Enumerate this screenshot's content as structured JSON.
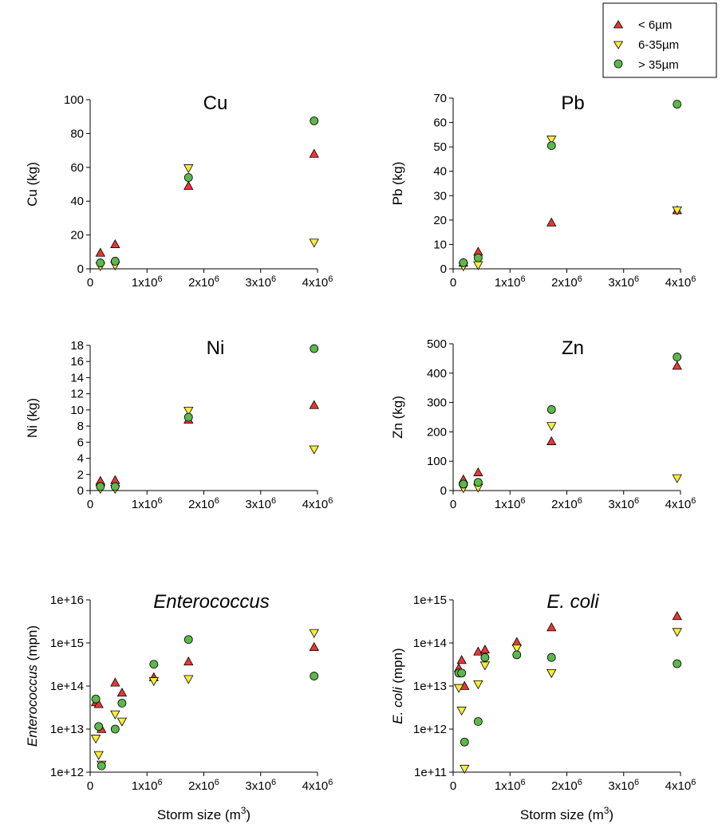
{
  "legend": {
    "entries": [
      {
        "key": "fine",
        "label": "< 6µm",
        "marker": "triangle-up",
        "color": "#e53935"
      },
      {
        "key": "mid",
        "label": "6-35µm",
        "marker": "triangle-down",
        "color": "#f5ee3a"
      },
      {
        "key": "coarse",
        "label": "> 35µm",
        "marker": "circle",
        "color": "#5cb84a"
      }
    ]
  },
  "chart_data": [
    {
      "id": "cu",
      "type": "scatter",
      "title": "Cu",
      "title_italic": false,
      "xlabel": "",
      "ylabel": "Cu (kg)",
      "ylabel_italic_prefix": "",
      "xlim": [
        0,
        4000000
      ],
      "ylim": [
        0,
        100
      ],
      "ylog": false,
      "xticks": [
        0,
        1000000,
        2000000,
        3000000,
        4000000
      ],
      "xtick_labels": [
        [
          "0",
          ""
        ],
        [
          "1x10",
          "6"
        ],
        [
          "2x10",
          "6"
        ],
        [
          "3x10",
          "6"
        ],
        [
          "4x10",
          "6"
        ]
      ],
      "yticks": [
        0,
        20,
        40,
        60,
        80,
        100
      ],
      "ytick_labels": [
        "0",
        "20",
        "40",
        "60",
        "80",
        "100"
      ],
      "series": [
        {
          "name": "< 6µm",
          "x": [
            180000,
            440000,
            1730000,
            3940000
          ],
          "y": [
            9.5,
            14.5,
            49,
            68
          ]
        },
        {
          "name": "6-35µm",
          "x": [
            180000,
            440000,
            1730000,
            3940000
          ],
          "y": [
            1.5,
            2,
            59.5,
            15.5
          ]
        },
        {
          "name": "> 35µm",
          "x": [
            180000,
            440000,
            1730000,
            3940000
          ],
          "y": [
            3.5,
            4.5,
            54,
            87.5
          ]
        }
      ]
    },
    {
      "id": "pb",
      "type": "scatter",
      "title": "Pb",
      "title_italic": false,
      "xlabel": "",
      "ylabel": "Pb (kg)",
      "ylabel_italic_prefix": "",
      "xlim": [
        0,
        4000000
      ],
      "ylim": [
        0,
        70
      ],
      "ylog": false,
      "xticks": [
        0,
        1000000,
        2000000,
        3000000,
        4000000
      ],
      "xtick_labels": [
        [
          "0",
          ""
        ],
        [
          "1x10",
          "6"
        ],
        [
          "2x10",
          "6"
        ],
        [
          "3x10",
          "6"
        ],
        [
          "4x10",
          "6"
        ]
      ],
      "yticks": [
        0,
        10,
        20,
        30,
        40,
        50,
        60,
        70
      ],
      "ytick_labels": [
        "0",
        "10",
        "20",
        "30",
        "40",
        "50",
        "60",
        "70"
      ],
      "series": [
        {
          "name": "< 6µm",
          "x": [
            180000,
            440000,
            1730000,
            3940000
          ],
          "y": [
            2.5,
            7,
            19,
            24
          ]
        },
        {
          "name": "6-35µm",
          "x": [
            180000,
            440000,
            1730000,
            3940000
          ],
          "y": [
            1,
            1.5,
            53,
            24
          ]
        },
        {
          "name": "> 35µm",
          "x": [
            180000,
            440000,
            1730000,
            3940000
          ],
          "y": [
            2.5,
            4.5,
            50.5,
            67.5
          ]
        }
      ]
    },
    {
      "id": "ni",
      "type": "scatter",
      "title": "Ni",
      "title_italic": false,
      "xlabel": "",
      "ylabel": "Ni (kg)",
      "ylabel_italic_prefix": "",
      "xlim": [
        0,
        4000000
      ],
      "ylim": [
        0,
        18
      ],
      "ylog": false,
      "xticks": [
        0,
        1000000,
        2000000,
        3000000,
        4000000
      ],
      "xtick_labels": [
        [
          "0",
          ""
        ],
        [
          "1x10",
          "6"
        ],
        [
          "2x10",
          "6"
        ],
        [
          "3x10",
          "6"
        ],
        [
          "4x10",
          "6"
        ]
      ],
      "yticks": [
        0,
        2,
        4,
        6,
        8,
        10,
        12,
        14,
        16,
        18
      ],
      "ytick_labels": [
        "0",
        "2",
        "4",
        "6",
        "8",
        "10",
        "12",
        "14",
        "16",
        "18"
      ],
      "series": [
        {
          "name": "< 6µm",
          "x": [
            180000,
            440000,
            1730000,
            3940000
          ],
          "y": [
            1.2,
            1.3,
            8.8,
            10.6
          ]
        },
        {
          "name": "6-35µm",
          "x": [
            180000,
            440000,
            1730000,
            3940000
          ],
          "y": [
            0.2,
            0.2,
            9.9,
            5.1
          ]
        },
        {
          "name": "> 35µm",
          "x": [
            180000,
            440000,
            1730000,
            3940000
          ],
          "y": [
            0.5,
            0.5,
            9.1,
            17.6
          ]
        }
      ]
    },
    {
      "id": "zn",
      "type": "scatter",
      "title": "Zn",
      "title_italic": false,
      "xlabel": "",
      "ylabel": "Zn (kg)",
      "ylabel_italic_prefix": "",
      "xlim": [
        0,
        4000000
      ],
      "ylim": [
        0,
        500
      ],
      "ylog": false,
      "xticks": [
        0,
        1000000,
        2000000,
        3000000,
        4000000
      ],
      "xtick_labels": [
        [
          "0",
          ""
        ],
        [
          "1x10",
          "6"
        ],
        [
          "2x10",
          "6"
        ],
        [
          "3x10",
          "6"
        ],
        [
          "4x10",
          "6"
        ]
      ],
      "yticks": [
        0,
        100,
        200,
        300,
        400,
        500
      ],
      "ytick_labels": [
        "0",
        "100",
        "200",
        "300",
        "400",
        "500"
      ],
      "series": [
        {
          "name": "< 6µm",
          "x": [
            180000,
            440000,
            1730000,
            3940000
          ],
          "y": [
            38,
            62,
            168,
            425
          ]
        },
        {
          "name": "6-35µm",
          "x": [
            180000,
            440000,
            1730000,
            3940000
          ],
          "y": [
            8,
            10,
            220,
            42
          ]
        },
        {
          "name": "> 35µm",
          "x": [
            180000,
            440000,
            1730000,
            3940000
          ],
          "y": [
            22,
            28,
            276,
            455
          ]
        }
      ]
    },
    {
      "id": "enterococcus",
      "type": "scatter",
      "title": "Enterococcus",
      "title_italic": true,
      "xlabel": "Storm size (m",
      "xlabel_sup": "3",
      "xlabel_suffix": ")",
      "ylabel": " (mpn)",
      "ylabel_italic_prefix": "Enterococcus",
      "xlim": [
        0,
        4000000
      ],
      "ylim": [
        1000000000000.0,
        1e+16
      ],
      "ylog": true,
      "xticks": [
        0,
        1000000,
        2000000,
        3000000,
        4000000
      ],
      "xtick_labels": [
        [
          "0",
          ""
        ],
        [
          "1x10",
          "6"
        ],
        [
          "2x10",
          "6"
        ],
        [
          "3x10",
          "6"
        ],
        [
          "4x10",
          "6"
        ]
      ],
      "yticks": [
        1000000000000.0,
        10000000000000.0,
        100000000000000.0,
        1000000000000000.0,
        1e+16
      ],
      "ytick_labels": [
        "1e+12",
        "1e+13",
        "1e+14",
        "1e+15",
        "1e+16"
      ],
      "series": [
        {
          "name": "< 6µm",
          "x": [
            100000,
            150000,
            200000,
            440000,
            560000,
            1120000,
            1730000,
            3940000
          ],
          "y": [
            42000000000000.0,
            38000000000000.0,
            10000000000000.0,
            120000000000000.0,
            70000000000000.0,
            160000000000000.0,
            370000000000000.0,
            800000000000000.0
          ]
        },
        {
          "name": "6-35µm",
          "x": [
            100000,
            150000,
            200000,
            440000,
            560000,
            1120000,
            1730000,
            3940000
          ],
          "y": [
            6000000000000.0,
            2500000000000.0,
            1500000000000.0,
            22000000000000.0,
            15000000000000.0,
            130000000000000.0,
            145000000000000.0,
            1700000000000000.0
          ]
        },
        {
          "name": "> 35µm",
          "x": [
            100000,
            150000,
            200000,
            440000,
            560000,
            1120000,
            1730000,
            3940000
          ],
          "y": [
            50000000000000.0,
            11500000000000.0,
            1400000000000.0,
            10000000000000.0,
            40000000000000.0,
            320000000000000.0,
            1200000000000000.0,
            170000000000000.0
          ]
        }
      ]
    },
    {
      "id": "ecoli",
      "type": "scatter",
      "title": "E. coli",
      "title_italic": true,
      "xlabel": "Storm size (m",
      "xlabel_sup": "3",
      "xlabel_suffix": ")",
      "ylabel": " (mpn)",
      "ylabel_italic_prefix": "E. coli",
      "xlim": [
        0,
        4000000
      ],
      "ylim": [
        100000000000.0,
        1000000000000000.0
      ],
      "ylog": true,
      "xticks": [
        0,
        1000000,
        2000000,
        3000000,
        4000000
      ],
      "xtick_labels": [
        [
          "0",
          ""
        ],
        [
          "1x10",
          "6"
        ],
        [
          "2x10",
          "6"
        ],
        [
          "3x10",
          "6"
        ],
        [
          "4x10",
          "6"
        ]
      ],
      "yticks": [
        100000000000.0,
        1000000000000.0,
        10000000000000.0,
        100000000000000.0,
        1000000000000000.0
      ],
      "ytick_labels": [
        "1e+11",
        "1e+12",
        "1e+13",
        "1e+14",
        "1e+15"
      ],
      "series": [
        {
          "name": "< 6µm",
          "x": [
            100000,
            150000,
            200000,
            440000,
            560000,
            1120000,
            1730000,
            3940000
          ],
          "y": [
            26000000000000.0,
            40000000000000.0,
            10000000000000.0,
            63000000000000.0,
            70000000000000.0,
            105000000000000.0,
            230000000000000.0,
            420000000000000.0
          ]
        },
        {
          "name": "6-35µm",
          "x": [
            100000,
            150000,
            200000,
            440000,
            560000,
            1120000,
            1730000,
            3940000
          ],
          "y": [
            9000000000000.0,
            2700000000000.0,
            120000000000.0,
            11000000000000.0,
            30000000000000.0,
            75000000000000.0,
            20000000000000.0,
            180000000000000.0
          ]
        },
        {
          "name": "> 35µm",
          "x": [
            100000,
            150000,
            200000,
            440000,
            560000,
            1120000,
            1730000,
            3940000
          ],
          "y": [
            20000000000000.0,
            20000000000000.0,
            500000000000.0,
            1500000000000.0,
            46000000000000.0,
            53000000000000.0,
            46000000000000.0,
            33000000000000.0
          ]
        }
      ]
    }
  ]
}
